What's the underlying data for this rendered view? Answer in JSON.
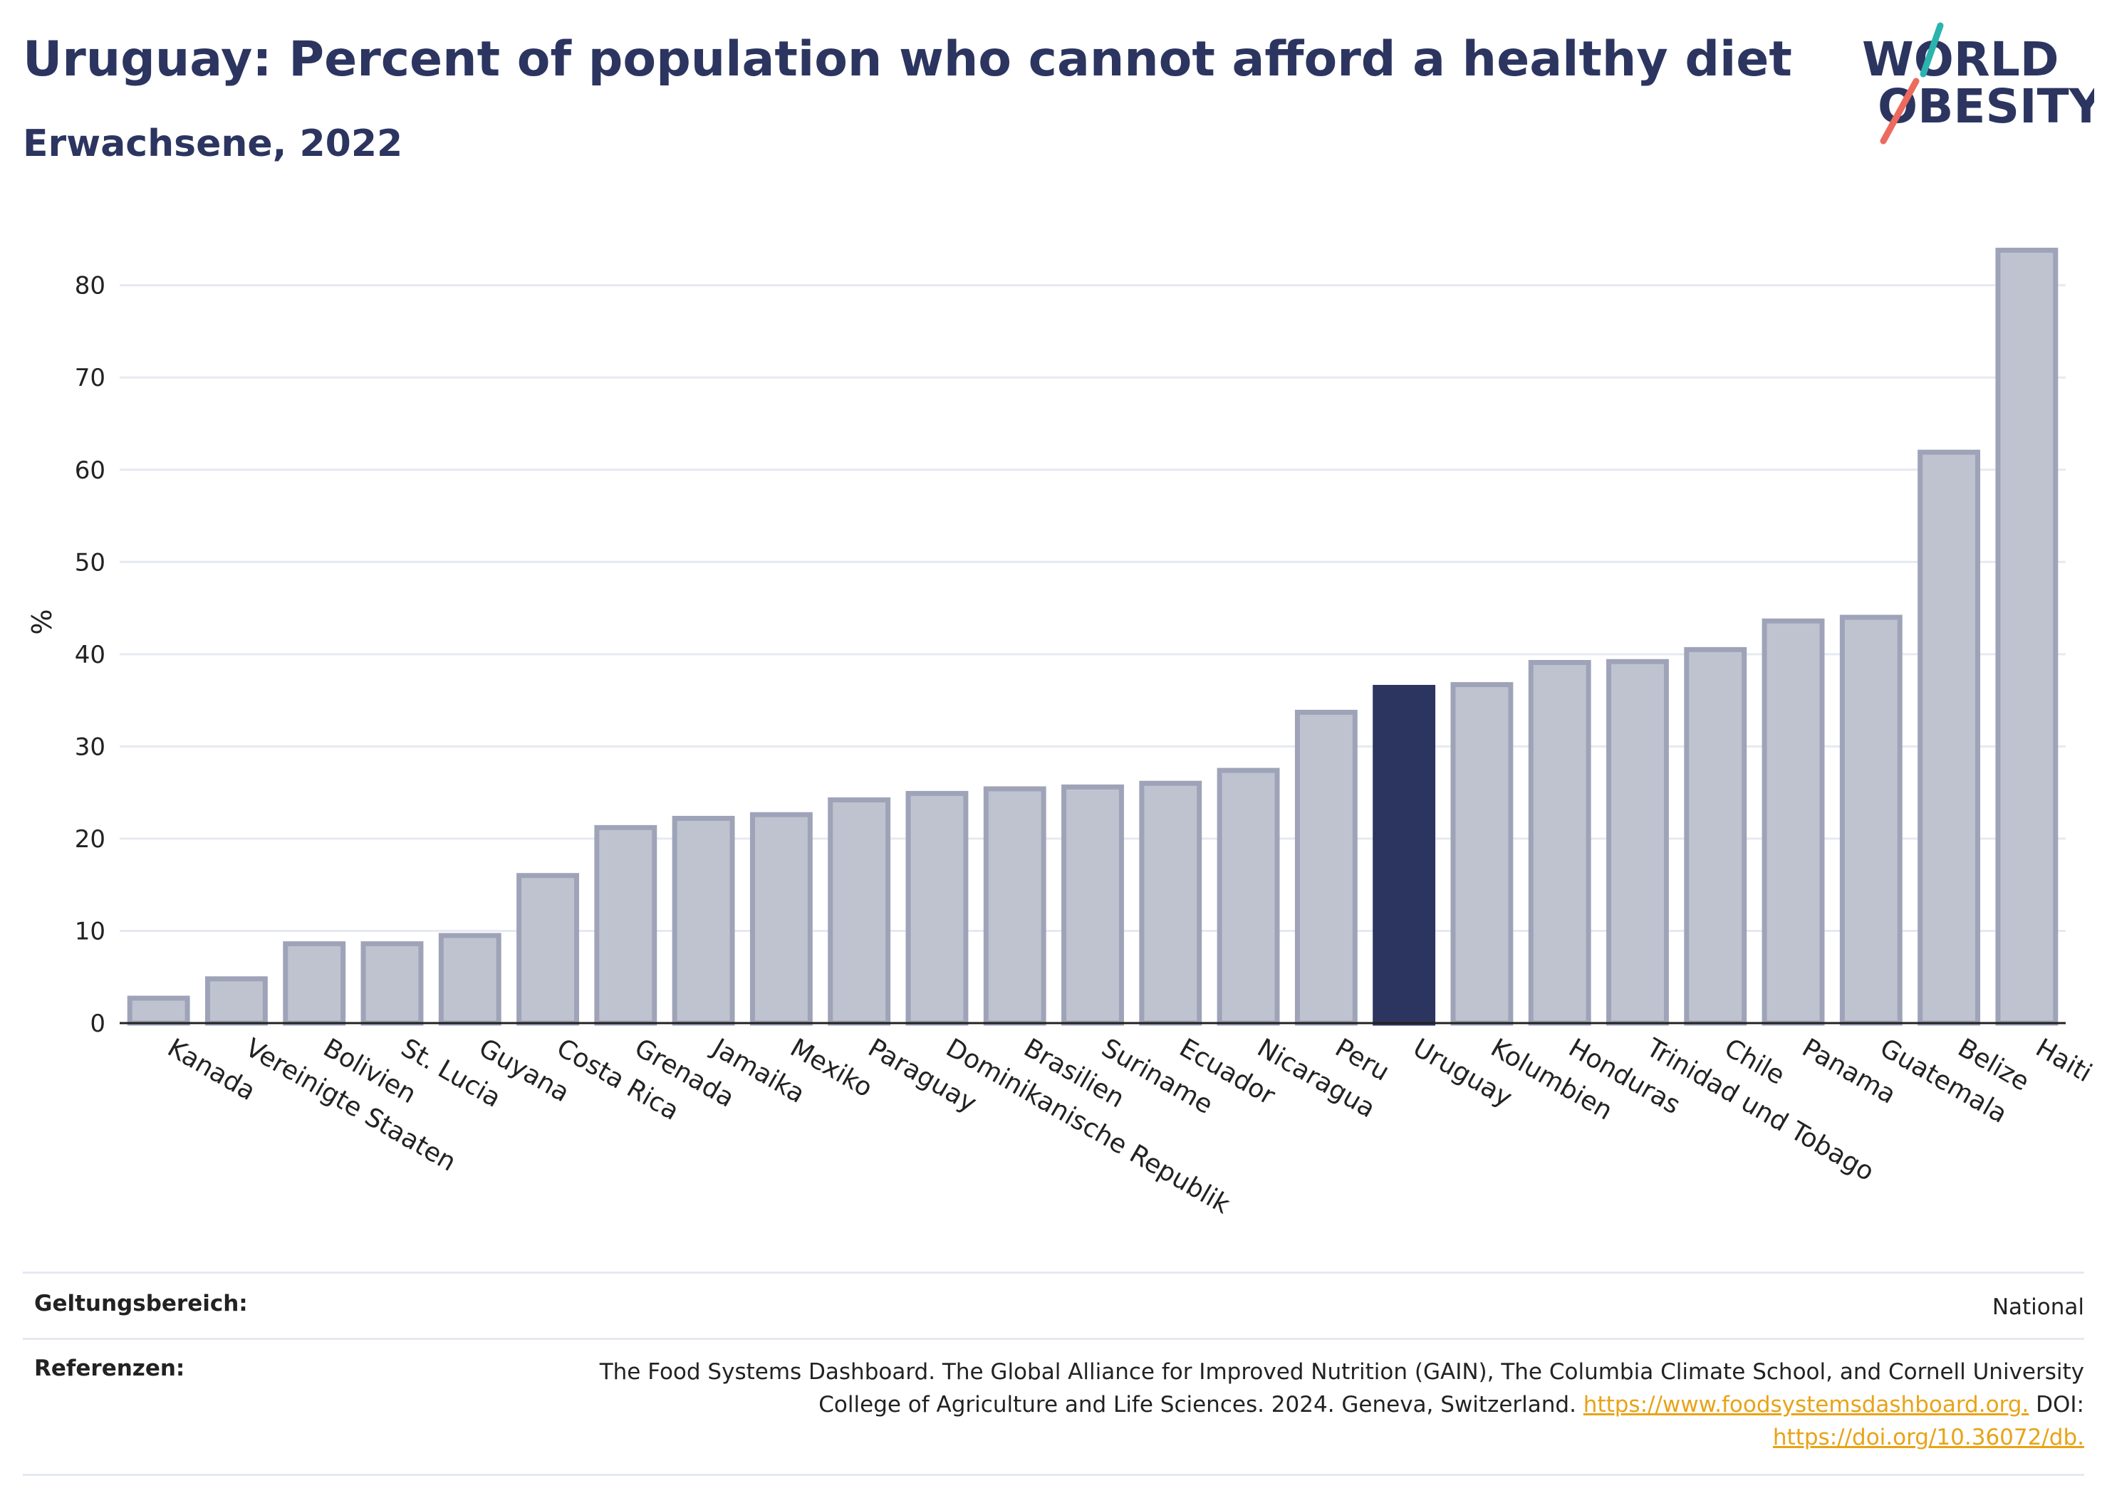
{
  "header": {
    "title": "Uruguay: Percent of population who cannot afford a healthy diet",
    "subtitle": "Erwachsene, 2022"
  },
  "logo": {
    "line1": "WORLD",
    "line2": "OBESITY"
  },
  "colors": {
    "highlight": "#2c3560",
    "bar": "#bfc3d0",
    "bar_border": "#9ea3b8",
    "grid": "#e6e9f2",
    "link": "#e8a317"
  },
  "chart_data": {
    "type": "bar",
    "ylabel": "%",
    "ylim": [
      0,
      87
    ],
    "yticks": [
      0,
      10,
      20,
      30,
      40,
      50,
      60,
      70,
      80
    ],
    "highlight": "Uruguay",
    "categories": [
      "Kanada",
      "Vereinigte Staaten",
      "Bolivien",
      "St. Lucia",
      "Guyana",
      "Costa Rica",
      "Grenada",
      "Jamaika",
      "Mexiko",
      "Paraguay",
      "Dominikanische Republik",
      "Brasilien",
      "Suriname",
      "Ecuador",
      "Nicaragua",
      "Peru",
      "Uruguay",
      "Kolumbien",
      "Honduras",
      "Trinidad und Tobago",
      "Chile",
      "Panama",
      "Guatemala",
      "Belize",
      "Haiti"
    ],
    "values": [
      2.7,
      4.8,
      8.6,
      8.6,
      9.5,
      16.0,
      21.2,
      22.2,
      22.6,
      24.2,
      24.9,
      25.4,
      25.6,
      26.0,
      27.4,
      33.7,
      36.4,
      36.7,
      39.1,
      39.2,
      40.5,
      43.6,
      44.0,
      61.9,
      83.8
    ]
  },
  "footer": {
    "scope_label": "Geltungsbereich:",
    "scope_value": "National",
    "refs_label": "Referenzen:",
    "refs_text_1": "The Food Systems Dashboard. The Global Alliance for Improved Nutrition (GAIN), The Columbia Climate School, and Cornell University",
    "refs_text_2": "College of Agriculture and Life Sciences. 2024. Geneva, Switzerland. ",
    "refs_link_1": "https://www.foodsystemsdashboard.org.",
    "refs_text_3": " DOI:",
    "refs_link_2": "https://doi.org/10.36072/db."
  }
}
